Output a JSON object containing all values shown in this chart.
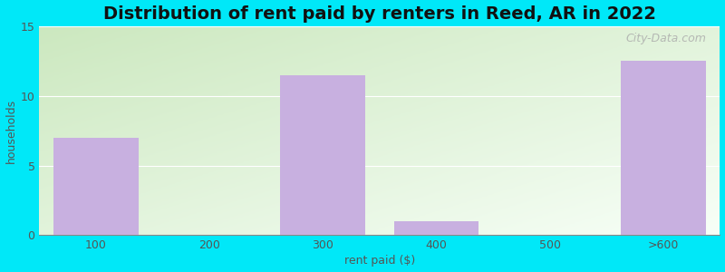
{
  "categories": [
    "100",
    "200",
    "300",
    "400",
    "500",
    ">600"
  ],
  "values": [
    7,
    0,
    11.5,
    1,
    0,
    12.5
  ],
  "bar_color": "#c8b0e0",
  "title": "Distribution of rent paid by renters in Reed, AR in 2022",
  "xlabel": "rent paid ($)",
  "ylabel": "households",
  "ylim": [
    0,
    15
  ],
  "yticks": [
    0,
    5,
    10,
    15
  ],
  "background_outer": "#00e8f8",
  "title_fontsize": 14,
  "label_fontsize": 9,
  "tick_fontsize": 9,
  "watermark": "City-Data.com",
  "grid_color": "#ffffff",
  "plot_bg_color_topleft": "#d8ead0",
  "plot_bg_color_bottomright": "#f0fbf0"
}
